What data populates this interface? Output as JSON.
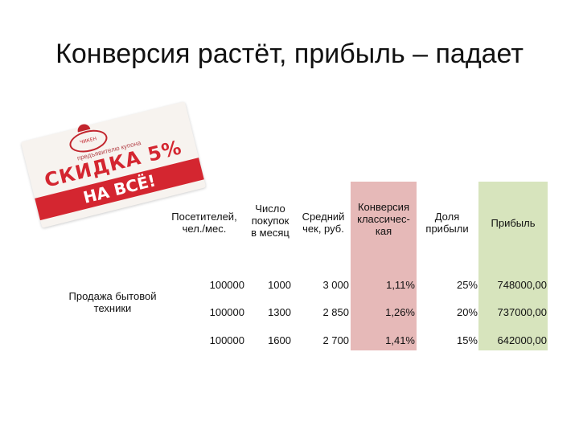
{
  "slide": {
    "title": "Конверсия растёт, прибыль – падает"
  },
  "coupon": {
    "emblem": "ЧИКЕН",
    "small_text": "предъявителю купона",
    "discount": "СКИДКА 5%",
    "band": "НА ВСЁ!"
  },
  "table": {
    "headers": {
      "visitors_line1": "Посетителей,",
      "visitors_line2": "чел./мес.",
      "purchases_line1": "Число",
      "purchases_line2": "покупок",
      "purchases_line3": "в месяц",
      "avg_check_line1": "Средний",
      "avg_check_line2": "чек, руб.",
      "conversion_line1": "Конверсия",
      "conversion_line2": "классичес-",
      "conversion_line3": "кая",
      "share_line1": "Доля",
      "share_line2": "прибыли",
      "profit": "Прибыль"
    },
    "row_label_line1": "Продажа бытовой",
    "row_label_line2": "техники",
    "colors": {
      "conversion_bg": "#e6b9b8",
      "profit_bg": "#d7e4bd"
    },
    "rows": [
      {
        "visitors": "100000",
        "purchases": "1000",
        "avg_check": "3 000",
        "conversion": "1,11%",
        "share": "25%",
        "profit": "748000,00"
      },
      {
        "visitors": "100000",
        "purchases": "1300",
        "avg_check": "2 850",
        "conversion": "1,26%",
        "share": "20%",
        "profit": "737000,00"
      },
      {
        "visitors": "100000",
        "purchases": "1600",
        "avg_check": "2 700",
        "conversion": "1,41%",
        "share": "15%",
        "profit": "642000,00"
      }
    ]
  }
}
